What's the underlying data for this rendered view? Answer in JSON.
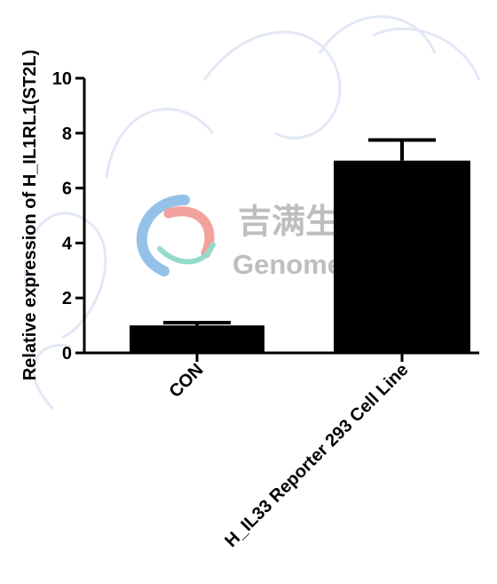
{
  "chart_data": {
    "type": "bar",
    "title": "",
    "xlabel": "",
    "ylabel": "Relative expression of H_IL1RL1(ST2L)",
    "categories": [
      "CON",
      "H_IL33 Reporter 293 Cell Line"
    ],
    "values": [
      1.0,
      7.0
    ],
    "error_upper": [
      0.1,
      0.75
    ],
    "ylim": [
      0,
      10
    ],
    "yticks": [
      0,
      2,
      4,
      6,
      8,
      10
    ],
    "grid": false,
    "legend": "none",
    "bar_color": "#000000"
  },
  "watermark": {
    "cn": "吉满生物科技",
    "en": "Genomeditech",
    "colors": {
      "blue": "#3d8fd6",
      "red": "#e8554d",
      "teal": "#3fbfa0",
      "text": "#8a8a8a"
    }
  }
}
